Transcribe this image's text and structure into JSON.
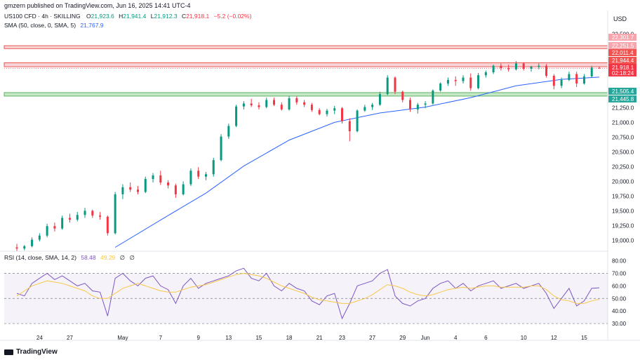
{
  "header": {
    "publisher": "gmzern published on TradingView.com, Jun 16, 2025 14:41 UTC-4",
    "symbol": "US100 CFD · 4h · SKILLING",
    "o_label": "O",
    "o": "21,923.6",
    "h_label": "H",
    "h": "21,941.4",
    "l_label": "L",
    "l": "21,912.3",
    "c_label": "C",
    "c": "21,918.1",
    "change": "−5.2 (−0.02%)",
    "sma_label": "SMA (50, close, 0, SMA, 5)",
    "sma_value": "21,767.9",
    "rsi_label": "RSI (14, close, SMA, 14, 2)",
    "rsi_value": "58.48",
    "rsi_ma_value": "49.29",
    "rsi_extra1": "∅",
    "rsi_extra2": "∅",
    "currency": "USD",
    "brand": "TradingView"
  },
  "colors": {
    "up": "#089981",
    "down": "#f23645",
    "sma": "#2962ff",
    "rsi": "#7e57c2",
    "rsi_ma": "#f7c948",
    "resistance_zone": "#f8c9cd",
    "support_zone": "#b6e3b8",
    "price_tag": "#f23645",
    "support_tag": "#26a69a"
  },
  "chart_data": {
    "type": "candlestick",
    "price_axis": {
      "ylim": [
        18850,
        22600
      ],
      "ticks": [
        "22,500.0",
        "21,250.0",
        "21,000.0",
        "20,750.0",
        "20,500.0",
        "20,250.0",
        "20,000.0",
        "19,750.0",
        "19,500.0",
        "19,250.0",
        "19,000.0"
      ],
      "tick_values": [
        22500,
        21250,
        21000,
        20750,
        20500,
        20250,
        20000,
        19750,
        19500,
        19250,
        19000
      ]
    },
    "rsi_axis": {
      "ylim": [
        25,
        82
      ],
      "ticks": [
        "80.00",
        "70.00",
        "60.00",
        "50.00",
        "40.00",
        "30.00"
      ],
      "tick_values": [
        80,
        70,
        60,
        50,
        40,
        30
      ],
      "upper_band": 70,
      "lower_band": 30,
      "mid": 50
    },
    "x_labels": [
      "24",
      "27",
      "May",
      "7",
      "9",
      "13",
      "15",
      "18",
      "21",
      "23",
      "27",
      "29",
      "Jun",
      "4",
      "6",
      "10",
      "12",
      "15"
    ],
    "x_label_bars": [
      3,
      7,
      14,
      19,
      24,
      28,
      32,
      36,
      40,
      43,
      47,
      51,
      54,
      58,
      62,
      67,
      71,
      75
    ],
    "bar_count": 78,
    "zones": [
      {
        "name": "resistance",
        "from": 22251.5,
        "to": 22301.7
      },
      {
        "name": "resistance-line",
        "from": 21944.4,
        "to": 22011.4
      },
      {
        "name": "support",
        "from": 21445.8,
        "to": 21505.4
      }
    ],
    "price_tags": [
      {
        "label": "22,301.7",
        "value": 22301.7,
        "kind": "zone"
      },
      {
        "label": "22,251.5",
        "value": 22251.5,
        "kind": "zone"
      },
      {
        "label": "22,011.4",
        "value": 22011.4,
        "kind": "zone"
      },
      {
        "label": "21,944.4",
        "value": 21944.4,
        "kind": "zone"
      },
      {
        "label": "21,918.1",
        "value": 21918.1,
        "kind": "price"
      },
      {
        "label": "02:18:24",
        "value": 21860,
        "kind": "price"
      },
      {
        "label": "21,505.4",
        "value": 21505.4,
        "kind": "support"
      },
      {
        "label": "21,445.8",
        "value": 21445.8,
        "kind": "support"
      }
    ],
    "ohlc": [
      [
        18880,
        18940,
        18820,
        18860
      ],
      [
        18860,
        18920,
        18830,
        18900
      ],
      [
        18900,
        19050,
        18880,
        19010
      ],
      [
        19010,
        19120,
        18980,
        19080
      ],
      [
        19080,
        19280,
        19050,
        19240
      ],
      [
        19240,
        19300,
        19150,
        19200
      ],
      [
        19200,
        19420,
        19180,
        19380
      ],
      [
        19380,
        19450,
        19300,
        19350
      ],
      [
        19350,
        19480,
        19320,
        19430
      ],
      [
        19430,
        19550,
        19380,
        19500
      ],
      [
        19500,
        19520,
        19380,
        19420
      ],
      [
        19420,
        19480,
        19350,
        19400
      ],
      [
        19400,
        19420,
        19080,
        19120
      ],
      [
        19120,
        19820,
        19100,
        19780
      ],
      [
        19780,
        19950,
        19700,
        19900
      ],
      [
        19900,
        19980,
        19820,
        19860
      ],
      [
        19860,
        19920,
        19780,
        19820
      ],
      [
        19820,
        20080,
        19800,
        20040
      ],
      [
        20040,
        20140,
        19980,
        20100
      ],
      [
        20100,
        20180,
        19940,
        19980
      ],
      [
        19980,
        20020,
        19880,
        19930
      ],
      [
        19930,
        19960,
        19720,
        19780
      ],
      [
        19780,
        20000,
        19760,
        19950
      ],
      [
        19950,
        20220,
        19920,
        20180
      ],
      [
        20180,
        20240,
        20040,
        20080
      ],
      [
        20080,
        20160,
        20020,
        20120
      ],
      [
        20120,
        20400,
        20080,
        20360
      ],
      [
        20360,
        20800,
        20340,
        20760
      ],
      [
        20760,
        20980,
        20720,
        20940
      ],
      [
        20940,
        21300,
        20920,
        21270
      ],
      [
        21270,
        21360,
        21220,
        21320
      ],
      [
        21320,
        21400,
        21260,
        21290
      ],
      [
        21290,
        21340,
        21220,
        21260
      ],
      [
        21260,
        21420,
        21240,
        21380
      ],
      [
        21380,
        21420,
        21280,
        21300
      ],
      [
        21300,
        21340,
        21200,
        21220
      ],
      [
        21220,
        21450,
        21200,
        21410
      ],
      [
        21410,
        21440,
        21300,
        21340
      ],
      [
        21340,
        21380,
        21260,
        21300
      ],
      [
        21300,
        21330,
        21180,
        21210
      ],
      [
        21210,
        21240,
        21120,
        21140
      ],
      [
        21140,
        21230,
        21100,
        21200
      ],
      [
        21200,
        21280,
        21140,
        21240
      ],
      [
        21240,
        21260,
        20980,
        21020
      ],
      [
        21020,
        21070,
        20680,
        20850
      ],
      [
        20850,
        21220,
        20830,
        21200
      ],
      [
        21200,
        21300,
        21180,
        21260
      ],
      [
        21260,
        21330,
        21210,
        21300
      ],
      [
        21300,
        21520,
        21280,
        21480
      ],
      [
        21480,
        21800,
        21460,
        21760
      ],
      [
        21760,
        21780,
        21480,
        21520
      ],
      [
        21520,
        21540,
        21340,
        21380
      ],
      [
        21380,
        21420,
        21180,
        21220
      ],
      [
        21220,
        21330,
        21150,
        21300
      ],
      [
        21300,
        21360,
        21240,
        21320
      ],
      [
        21320,
        21560,
        21300,
        21540
      ],
      [
        21540,
        21680,
        21520,
        21660
      ],
      [
        21660,
        21760,
        21620,
        21720
      ],
      [
        21720,
        21780,
        21620,
        21700
      ],
      [
        21700,
        21800,
        21660,
        21760
      ],
      [
        21760,
        21830,
        21540,
        21580
      ],
      [
        21580,
        21840,
        21560,
        21800
      ],
      [
        21800,
        21880,
        21760,
        21850
      ],
      [
        21850,
        21980,
        21820,
        21960
      ],
      [
        21960,
        22000,
        21880,
        21920
      ],
      [
        21920,
        21980,
        21860,
        21900
      ],
      [
        21900,
        22040,
        21880,
        22000
      ],
      [
        22000,
        22020,
        21880,
        21910
      ],
      [
        21910,
        21960,
        21860,
        21940
      ],
      [
        21940,
        22000,
        21900,
        21960
      ],
      [
        21960,
        21990,
        21760,
        21790
      ],
      [
        21790,
        21820,
        21560,
        21620
      ],
      [
        21620,
        21760,
        21580,
        21720
      ],
      [
        21720,
        21860,
        21700,
        21820
      ],
      [
        21820,
        21860,
        21600,
        21660
      ],
      [
        21660,
        21820,
        21640,
        21780
      ],
      [
        21780,
        21960,
        21760,
        21930
      ],
      [
        21923.6,
        21941.4,
        21912.3,
        21918.1
      ]
    ],
    "sma": [
      [
        13,
        18880
      ],
      [
        20,
        19420
      ],
      [
        25,
        19800
      ],
      [
        30,
        20260
      ],
      [
        36,
        20700
      ],
      [
        42,
        21000
      ],
      [
        48,
        21160
      ],
      [
        54,
        21260
      ],
      [
        60,
        21420
      ],
      [
        66,
        21620
      ],
      [
        72,
        21730
      ],
      [
        77,
        21768
      ]
    ],
    "rsi": [
      54,
      52,
      62,
      66,
      70,
      65,
      68,
      64,
      60,
      62,
      56,
      55,
      36,
      66,
      70,
      64,
      60,
      66,
      68,
      60,
      57,
      46,
      60,
      66,
      58,
      62,
      64,
      66,
      68,
      72,
      74,
      66,
      64,
      70,
      60,
      56,
      62,
      58,
      56,
      48,
      45,
      52,
      54,
      34,
      46,
      60,
      62,
      64,
      70,
      73,
      52,
      46,
      44,
      48,
      50,
      58,
      62,
      64,
      58,
      62,
      56,
      60,
      62,
      64,
      58,
      60,
      62,
      58,
      60,
      62,
      54,
      42,
      50,
      58,
      44,
      48,
      58,
      58.48
    ],
    "rsi_ma": [
      52,
      56,
      60,
      62,
      64,
      63,
      62,
      60,
      58,
      56,
      52,
      50,
      50,
      54,
      58,
      60,
      62,
      60,
      58,
      56,
      55,
      55,
      57,
      59,
      60,
      61,
      63,
      65,
      67,
      69,
      70,
      69,
      68,
      66,
      63,
      60,
      58,
      56,
      54,
      51,
      49,
      48,
      47,
      46,
      46,
      48,
      50,
      53,
      57,
      61,
      60,
      58,
      55,
      53,
      52,
      53,
      55,
      57,
      58,
      59,
      58,
      59,
      60,
      60,
      59,
      59,
      59,
      59,
      60,
      60,
      57,
      52,
      49,
      48,
      46,
      46,
      48,
      49.29
    ]
  }
}
